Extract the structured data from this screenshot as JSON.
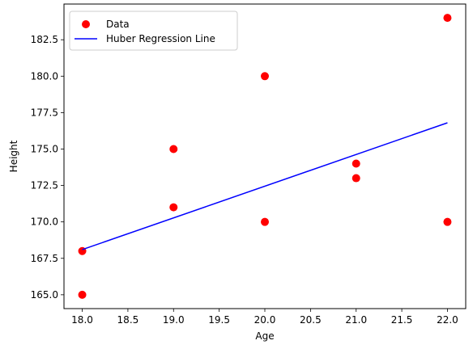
{
  "chart_data": {
    "type": "scatter",
    "xlabel": "Age",
    "ylabel": "Height",
    "xlim": [
      17.8,
      22.2
    ],
    "ylim": [
      164.05,
      184.95
    ],
    "xticks": [
      "18.0",
      "18.5",
      "19.0",
      "19.5",
      "20.0",
      "20.5",
      "21.0",
      "21.5",
      "22.0"
    ],
    "yticks": [
      "165.0",
      "167.5",
      "170.0",
      "172.5",
      "175.0",
      "177.5",
      "180.0",
      "182.5"
    ],
    "grid": false,
    "legend_position": "top-left",
    "series": [
      {
        "name": "Data",
        "kind": "scatter",
        "color": "#ff0000",
        "points": [
          {
            "x": 18,
            "y": 168
          },
          {
            "x": 18,
            "y": 165
          },
          {
            "x": 19,
            "y": 175
          },
          {
            "x": 19,
            "y": 171
          },
          {
            "x": 20,
            "y": 180
          },
          {
            "x": 20,
            "y": 170
          },
          {
            "x": 21,
            "y": 174
          },
          {
            "x": 21,
            "y": 173
          },
          {
            "x": 22,
            "y": 184
          },
          {
            "x": 22,
            "y": 170
          }
        ]
      },
      {
        "name": "Huber Regression Line",
        "kind": "line",
        "color": "#0000ff",
        "points": [
          {
            "x": 18,
            "y": 168.1
          },
          {
            "x": 22,
            "y": 176.8
          }
        ]
      }
    ]
  }
}
